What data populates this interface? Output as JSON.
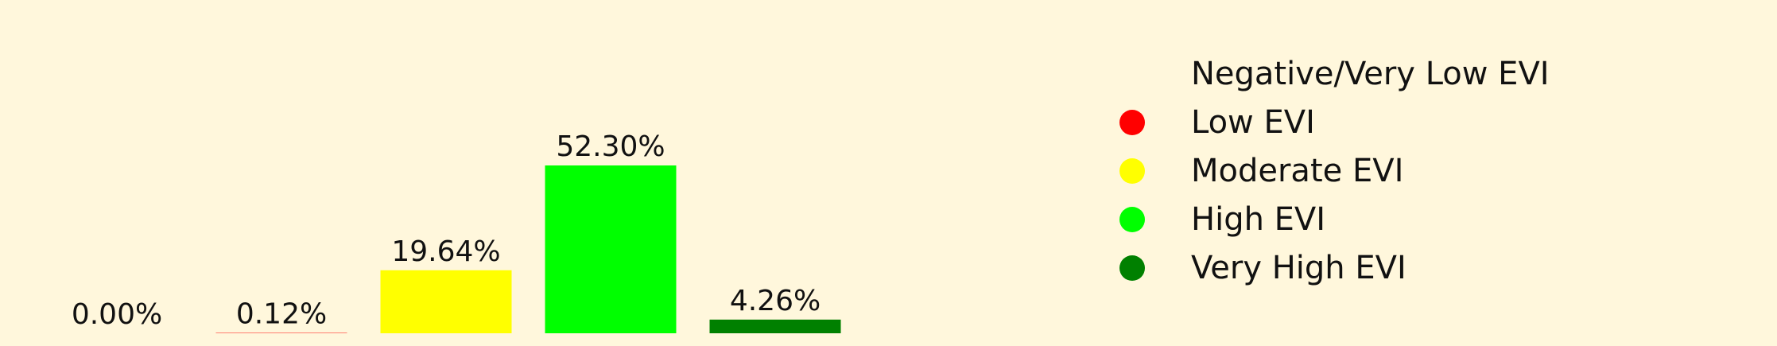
{
  "chart_data": {
    "type": "bar",
    "categories": [
      "Negative/Very Low EVI",
      "Low EVI",
      "Moderate EVI",
      "High EVI",
      "Very High EVI"
    ],
    "values": [
      0.0,
      0.12,
      19.64,
      52.3,
      4.26
    ],
    "value_labels": [
      "0.00%",
      "0.12%",
      "19.64%",
      "52.30%",
      "4.26%"
    ],
    "colors": [
      "#fff7dc",
      "#ff0000",
      "#ffff00",
      "#00ff00",
      "#008000"
    ],
    "ylim": [
      0,
      52.3
    ],
    "grid": false,
    "legend_position": "right",
    "legend": [
      {
        "label": "Negative/Very Low EVI",
        "color": "#fff7dc"
      },
      {
        "label": "Low EVI",
        "color": "#ff0000"
      },
      {
        "label": "Moderate EVI",
        "color": "#ffff00"
      },
      {
        "label": "High EVI",
        "color": "#00ff00"
      },
      {
        "label": "Very High EVI",
        "color": "#008000"
      }
    ]
  }
}
